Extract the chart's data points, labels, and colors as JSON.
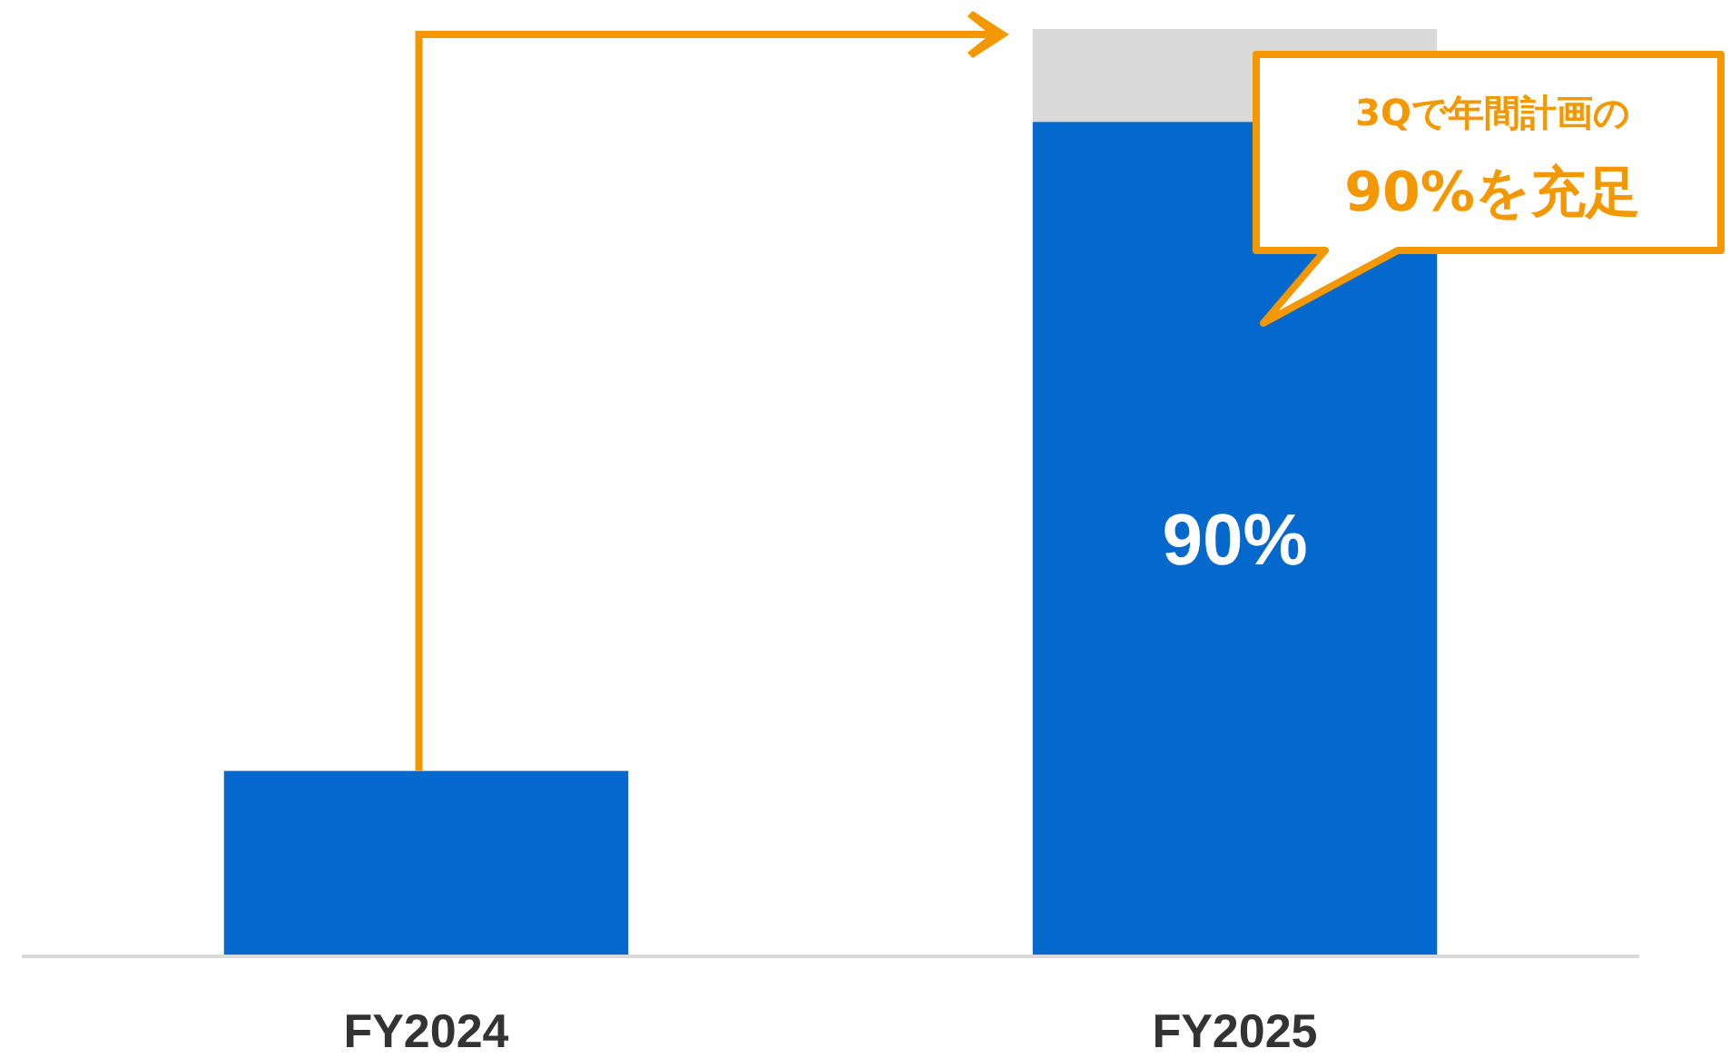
{
  "chart_data": {
    "type": "bar",
    "stacked": true,
    "categories": [
      "FY2024",
      "FY2025"
    ],
    "ylim": [
      0,
      100
    ],
    "tick_labels": "x",
    "series": [
      {
        "color": "#0568cc",
        "values": [
          20,
          90
        ],
        "value_labels": [
          null,
          "90%"
        ]
      },
      {
        "color": "#d9d9d9",
        "values": [
          null,
          10
        ]
      }
    ],
    "annotations": [
      "3Qで年間計画の",
      "90%を充足"
    ]
  }
}
